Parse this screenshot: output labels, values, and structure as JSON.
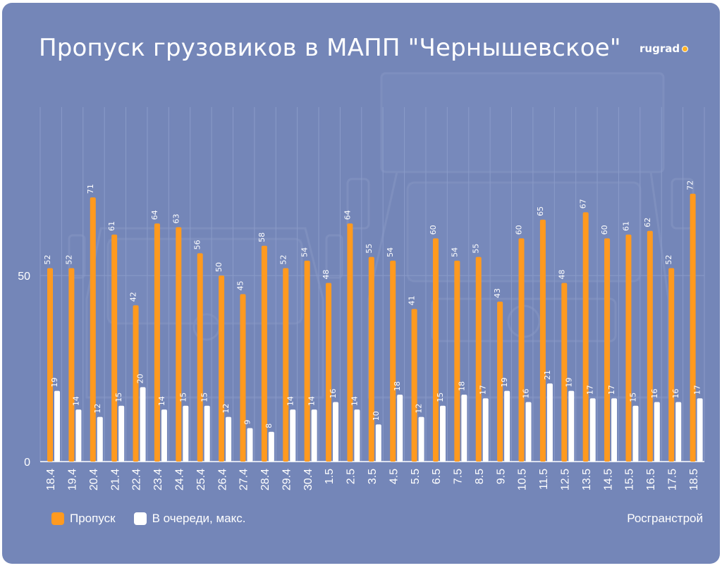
{
  "chart_data": {
    "type": "bar",
    "title": "Пропуск грузовиков в МАПП \"Чернышевское\"",
    "categories": [
      "18.4",
      "19.4",
      "20.4",
      "21.4",
      "22.4",
      "23.4",
      "24.4",
      "25.4",
      "26.4",
      "27.4",
      "28.4",
      "29.4",
      "30.4",
      "1.5",
      "2.5",
      "3.5",
      "4.5",
      "5.5",
      "6.5",
      "7.5",
      "8.5",
      "9.5",
      "10.5",
      "11.5",
      "12.5",
      "13.5",
      "14.5",
      "15.5",
      "16.5",
      "17.5",
      "18.5"
    ],
    "series": [
      {
        "name": "Пропуск",
        "color": "#ff9a1f",
        "values": [
          52,
          52,
          71,
          61,
          42,
          64,
          63,
          56,
          50,
          45,
          58,
          52,
          54,
          48,
          64,
          55,
          54,
          41,
          60,
          54,
          55,
          43,
          60,
          65,
          48,
          67,
          60,
          61,
          62,
          52,
          72
        ]
      },
      {
        "name": "В очереди, макс.",
        "color": "#ffffff",
        "values": [
          19,
          14,
          12,
          15,
          20,
          14,
          15,
          15,
          12,
          9,
          8,
          14,
          14,
          16,
          14,
          10,
          18,
          12,
          15,
          18,
          17,
          19,
          16,
          21,
          19,
          17,
          17,
          15,
          16,
          16,
          17
        ]
      }
    ],
    "yticks": [
      0,
      50
    ],
    "ylim": [
      0,
      95
    ],
    "grid": "vertical",
    "legend": "bottom-left",
    "xlabel": "",
    "ylabel": ""
  },
  "brand": {
    "logo_text": "rugrad",
    "accent": "#ffb224"
  },
  "source": "Росгранстрой",
  "colors": {
    "background": "#7486b8",
    "grid": "#8a9bc9"
  }
}
